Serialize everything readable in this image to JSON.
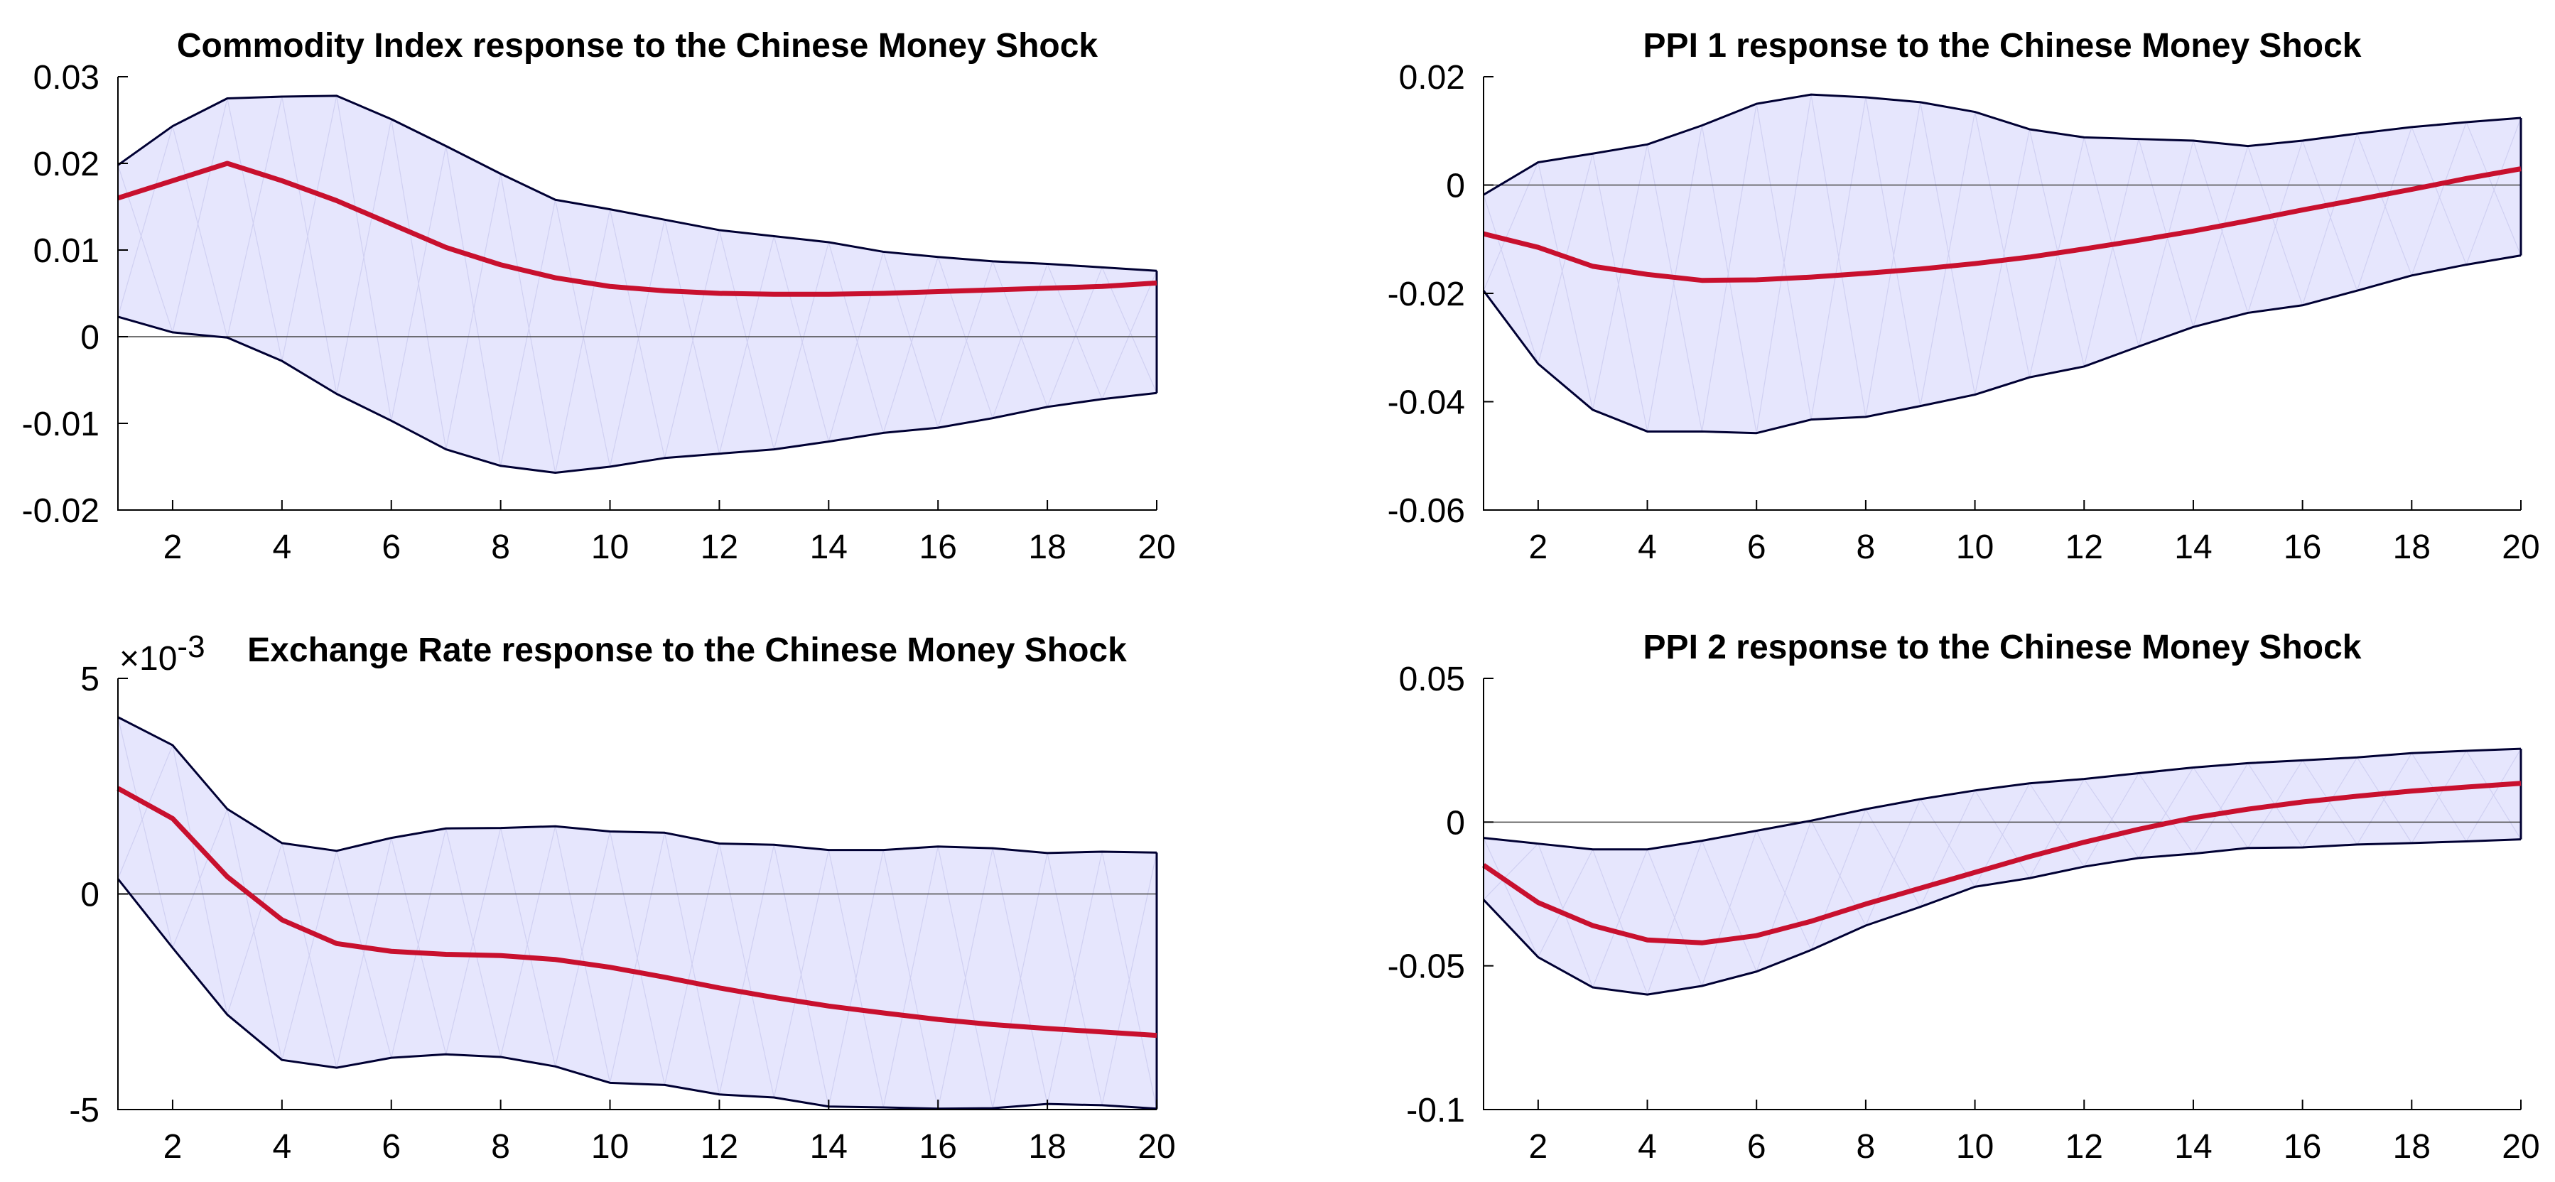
{
  "chart_data": [
    {
      "type": "line",
      "title": "Commodity Index response to the Chinese Money Shock",
      "exponent_label": "",
      "x": [
        1,
        2,
        3,
        4,
        5,
        6,
        7,
        8,
        9,
        10,
        11,
        12,
        13,
        14,
        15,
        16,
        17,
        18,
        19,
        20
      ],
      "xlim": [
        1,
        20
      ],
      "ylim": [
        -0.02,
        0.03
      ],
      "xticks": [
        2,
        4,
        6,
        8,
        10,
        12,
        14,
        16,
        18,
        20
      ],
      "xtick_labels": [
        "2",
        "4",
        "6",
        "8",
        "10",
        "12",
        "14",
        "16",
        "18",
        "20"
      ],
      "yticks": [
        -0.02,
        -0.01,
        0,
        0.01,
        0.02,
        0.03
      ],
      "ytick_labels": [
        "-0.02",
        "-0.01",
        "0",
        "0.01",
        "0.02",
        "0.03"
      ],
      "series": [
        {
          "name": "upper",
          "values": [
            0.0198,
            0.0243,
            0.0275,
            0.0277,
            0.0278,
            0.0251,
            0.022,
            0.0188,
            0.0158,
            0.0147,
            0.0135,
            0.0123,
            0.0116,
            0.0109,
            0.0098,
            0.0092,
            0.0087,
            0.0084,
            0.008,
            0.0076
          ]
        },
        {
          "name": "response",
          "values": [
            0.016,
            0.018,
            0.02,
            0.018,
            0.0157,
            0.013,
            0.0103,
            0.0083,
            0.0068,
            0.0058,
            0.0053,
            0.005,
            0.0049,
            0.0049,
            0.005,
            0.0052,
            0.0054,
            0.0056,
            0.0058,
            0.0062
          ]
        },
        {
          "name": "lower",
          "values": [
            0.0023,
            0.0005,
            -0.0001,
            -0.0028,
            -0.0066,
            -0.0097,
            -0.013,
            -0.0149,
            -0.0157,
            -0.015,
            -0.014,
            -0.0135,
            -0.013,
            -0.0121,
            -0.0111,
            -0.0105,
            -0.0094,
            -0.0081,
            -0.0072,
            -0.0065
          ]
        }
      ]
    },
    {
      "type": "line",
      "title": "PPI 1 response to the Chinese Money Shock",
      "exponent_label": "",
      "x": [
        1,
        2,
        3,
        4,
        5,
        6,
        7,
        8,
        9,
        10,
        11,
        12,
        13,
        14,
        15,
        16,
        17,
        18,
        19,
        20
      ],
      "xlim": [
        1,
        20
      ],
      "ylim": [
        -0.06,
        0.02
      ],
      "xticks": [
        2,
        4,
        6,
        8,
        10,
        12,
        14,
        16,
        18,
        20
      ],
      "xtick_labels": [
        "2",
        "4",
        "6",
        "8",
        "10",
        "12",
        "14",
        "16",
        "18",
        "20"
      ],
      "yticks": [
        -0.06,
        -0.04,
        -0.02,
        0,
        0.02
      ],
      "ytick_labels": [
        "-0.06",
        "-0.04",
        "-0.02",
        "0",
        "0.02"
      ],
      "series": [
        {
          "name": "upper",
          "values": [
            -0.0018,
            0.0042,
            0.0058,
            0.0075,
            0.011,
            0.015,
            0.0167,
            0.0162,
            0.0153,
            0.0135,
            0.0103,
            0.0088,
            0.0085,
            0.0082,
            0.0072,
            0.0082,
            0.0095,
            0.0107,
            0.0116,
            0.0124
          ]
        },
        {
          "name": "response",
          "values": [
            -0.009,
            -0.0115,
            -0.015,
            -0.0165,
            -0.0176,
            -0.0175,
            -0.017,
            -0.0163,
            -0.0155,
            -0.0145,
            -0.0133,
            -0.0118,
            -0.0102,
            -0.0085,
            -0.0066,
            -0.0046,
            -0.0027,
            -0.0008,
            0.0012,
            0.003
          ]
        },
        {
          "name": "lower",
          "values": [
            -0.0195,
            -0.033,
            -0.0415,
            -0.0455,
            -0.0455,
            -0.0458,
            -0.0433,
            -0.0428,
            -0.0408,
            -0.0387,
            -0.0355,
            -0.0335,
            -0.0298,
            -0.0262,
            -0.0236,
            -0.0222,
            -0.0195,
            -0.0167,
            -0.0147,
            -0.013
          ]
        }
      ]
    },
    {
      "type": "line",
      "title": "Exchange Rate response to the Chinese Money Shock",
      "exponent_label": "×10-3",
      "exponent_base": "×10",
      "exponent_power": "-3",
      "x": [
        1,
        2,
        3,
        4,
        5,
        6,
        7,
        8,
        9,
        10,
        11,
        12,
        13,
        14,
        15,
        16,
        17,
        18,
        19,
        20
      ],
      "xlim": [
        1,
        20
      ],
      "ylim": [
        -5,
        5
      ],
      "xticks": [
        2,
        4,
        6,
        8,
        10,
        12,
        14,
        16,
        18,
        20
      ],
      "xtick_labels": [
        "2",
        "4",
        "6",
        "8",
        "10",
        "12",
        "14",
        "16",
        "18",
        "20"
      ],
      "yticks": [
        -5,
        0,
        5
      ],
      "ytick_labels": [
        "-5",
        "0",
        "5"
      ],
      "series": [
        {
          "name": "upper",
          "values": [
            4.1,
            3.45,
            1.97,
            1.18,
            1.0,
            1.3,
            1.52,
            1.53,
            1.57,
            1.45,
            1.42,
            1.17,
            1.14,
            1.02,
            1.02,
            1.1,
            1.06,
            0.95,
            0.98,
            0.96
          ]
        },
        {
          "name": "response",
          "values": [
            2.45,
            1.75,
            0.4,
            -0.6,
            -1.15,
            -1.33,
            -1.4,
            -1.43,
            -1.52,
            -1.7,
            -1.93,
            -2.18,
            -2.4,
            -2.6,
            -2.76,
            -2.91,
            -3.03,
            -3.12,
            -3.2,
            -3.28
          ]
        },
        {
          "name": "lower",
          "values": [
            0.35,
            -1.25,
            -2.8,
            -3.85,
            -4.03,
            -3.8,
            -3.72,
            -3.78,
            -4.0,
            -4.38,
            -4.43,
            -4.65,
            -4.72,
            -4.93,
            -4.95,
            -4.98,
            -4.97,
            -4.87,
            -4.9,
            -4.98
          ]
        }
      ]
    },
    {
      "type": "line",
      "title": "PPI 2 response to the Chinese Money Shock",
      "exponent_label": "",
      "x": [
        1,
        2,
        3,
        4,
        5,
        6,
        7,
        8,
        9,
        10,
        11,
        12,
        13,
        14,
        15,
        16,
        17,
        18,
        19,
        20
      ],
      "xlim": [
        1,
        20
      ],
      "ylim": [
        -0.1,
        0.05
      ],
      "xticks": [
        2,
        4,
        6,
        8,
        10,
        12,
        14,
        16,
        18,
        20
      ],
      "xtick_labels": [
        "2",
        "4",
        "6",
        "8",
        "10",
        "12",
        "14",
        "16",
        "18",
        "20"
      ],
      "yticks": [
        -0.1,
        -0.05,
        0,
        0.05
      ],
      "ytick_labels": [
        "-0.1",
        "-0.05",
        "0",
        "0.05"
      ],
      "series": [
        {
          "name": "upper",
          "values": [
            -0.0055,
            -0.0075,
            -0.0095,
            -0.0095,
            -0.0065,
            -0.003,
            0.0005,
            0.0045,
            0.008,
            0.011,
            0.0135,
            0.015,
            0.017,
            0.019,
            0.0205,
            0.0215,
            0.0225,
            0.024,
            0.0248,
            0.0255
          ]
        },
        {
          "name": "response",
          "values": [
            -0.015,
            -0.028,
            -0.036,
            -0.041,
            -0.042,
            -0.0395,
            -0.0345,
            -0.0285,
            -0.023,
            -0.0175,
            -0.012,
            -0.007,
            -0.0025,
            0.0015,
            0.0045,
            0.007,
            0.009,
            0.0108,
            0.0122,
            0.0135
          ]
        },
        {
          "name": "lower",
          "values": [
            -0.027,
            -0.047,
            -0.0575,
            -0.06,
            -0.057,
            -0.052,
            -0.0445,
            -0.036,
            -0.0295,
            -0.0225,
            -0.0195,
            -0.0155,
            -0.0125,
            -0.011,
            -0.009,
            -0.0088,
            -0.0078,
            -0.0073,
            -0.0067,
            -0.006
          ]
        }
      ]
    }
  ]
}
